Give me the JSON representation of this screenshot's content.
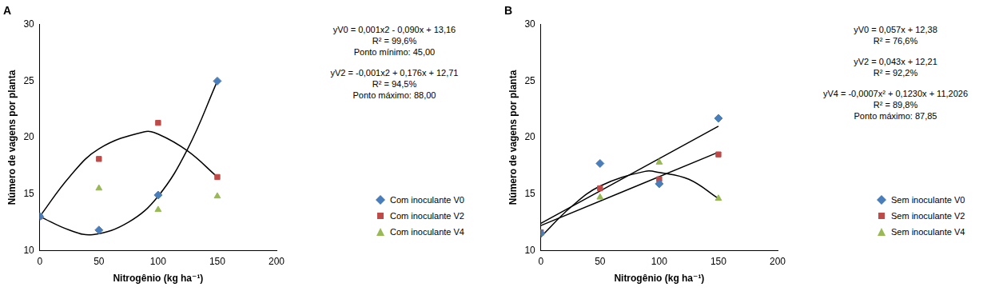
{
  "chart_data": [
    {
      "type": "scatter",
      "title": "A",
      "x_label": "Nitrogênio (kg ha⁻¹)",
      "y_label": "Número de vagens por planta",
      "xlim": [
        0,
        200
      ],
      "xticks": [
        0,
        50,
        100,
        150,
        200
      ],
      "ylim": [
        10,
        30
      ],
      "yticks": [
        10,
        15,
        20,
        25,
        30
      ],
      "grid": false,
      "legend": "right",
      "x": [
        0,
        50,
        100,
        150
      ],
      "series": [
        {
          "name": "Com inoculante V0",
          "color": "#4a7ebb",
          "marker": "diamond",
          "values": [
            13.0,
            11.8,
            14.9,
            25.0
          ],
          "trend": {
            "x": [
              0,
              25,
              45,
              75,
              100,
              125,
              150
            ],
            "values": [
              13.0,
              11.8,
              11.4,
              12.5,
              14.8,
              19.0,
              25.0
            ],
            "color": "#000000",
            "line_style": "solid"
          }
        },
        {
          "name": "Com inoculante V2",
          "color": "#be4b48",
          "marker": "square",
          "values": [
            13.0,
            18.1,
            21.3,
            16.5
          ],
          "trend": {
            "x": [
              0,
              25,
              50,
              88,
              100,
              125,
              150
            ],
            "values": [
              13.0,
              16.5,
              19.0,
              20.5,
              20.3,
              18.8,
              16.5
            ],
            "color": "#000000",
            "line_style": "solid"
          }
        },
        {
          "name": "Com inoculante V4",
          "color": "#98b954",
          "marker": "triangle",
          "values": [
            13.0,
            15.5,
            13.6,
            14.8
          ]
        }
      ],
      "annotations": [
        [
          "yV0 = 0,001x2 - 0,090x + 13,16",
          "R² = 99,6%",
          "Ponto mínimo: 45,00"
        ],
        [
          "yV2 = -0,001x2 + 0,176x + 12,71",
          "R² = 94,5%",
          "Ponto máximo: 88,00"
        ]
      ]
    },
    {
      "type": "scatter",
      "title": "B",
      "x_label": "Nitrogênio (kg ha⁻¹)",
      "y_label": "Número de vagens por planta",
      "xlim": [
        0,
        200
      ],
      "xticks": [
        0,
        50,
        100,
        150,
        200
      ],
      "ylim": [
        10,
        30
      ],
      "yticks": [
        10,
        15,
        20,
        25,
        30
      ],
      "grid": false,
      "legend": "right",
      "x": [
        0,
        50,
        100,
        150
      ],
      "series": [
        {
          "name": "Sem inoculante V0",
          "color": "#4a7ebb",
          "marker": "diamond",
          "values": [
            11.5,
            17.7,
            15.9,
            21.7
          ],
          "trend": {
            "x": [
              0,
              150
            ],
            "values": [
              12.4,
              21.0
            ],
            "color": "#000000",
            "line_style": "solid"
          }
        },
        {
          "name": "Sem inoculante V2",
          "color": "#be4b48",
          "marker": "square",
          "values": [
            11.6,
            15.5,
            16.3,
            18.5
          ],
          "trend": {
            "x": [
              0,
              150
            ],
            "values": [
              12.2,
              18.7
            ],
            "color": "#000000",
            "line_style": "solid"
          }
        },
        {
          "name": "Sem inoculante V4",
          "color": "#98b954",
          "marker": "triangle",
          "values": [
            11.5,
            14.7,
            17.8,
            14.6
          ],
          "trend": {
            "x": [
              0,
              25,
              50,
              88,
              100,
              125,
              150
            ],
            "values": [
              11.2,
              13.8,
              15.7,
              17.0,
              16.9,
              16.3,
              14.6
            ],
            "color": "#000000",
            "line_style": "solid"
          }
        }
      ],
      "annotations": [
        [
          "yV0 = 0,057x + 12,38",
          "R² = 76,6%"
        ],
        [
          "yV2 = 0,043x + 12,21",
          "R² = 92,2%"
        ],
        [
          "yV4 = -0,0007x² + 0,1230x + 11,2026",
          "R² = 89,8%",
          "Ponto máximo: 87,85"
        ]
      ]
    }
  ]
}
